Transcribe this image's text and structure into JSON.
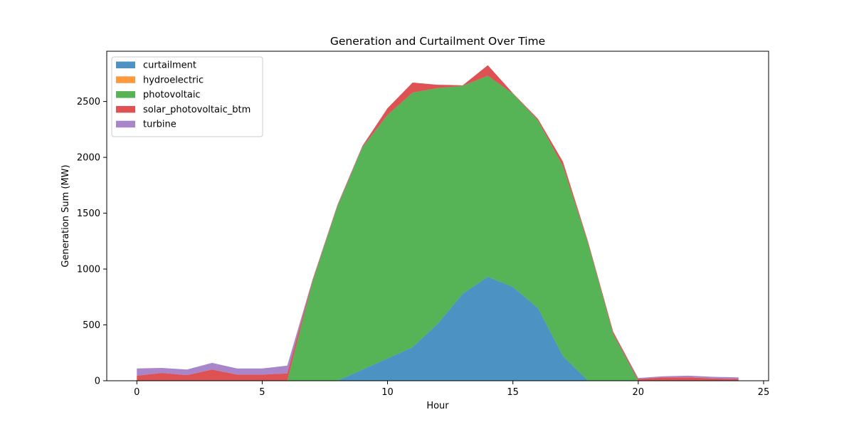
{
  "chart_data": {
    "type": "area",
    "stacked": true,
    "title": "Generation and Curtailment Over Time",
    "xlabel": "Hour",
    "ylabel": "Generation Sum (MW)",
    "xlim": [
      -1.2,
      25.2
    ],
    "ylim": [
      0,
      2950
    ],
    "xticks": [
      0,
      5,
      10,
      15,
      20,
      25
    ],
    "yticks": [
      0,
      500,
      1000,
      1500,
      2000,
      2500
    ],
    "legend_position": "top-left",
    "grid": false,
    "x": [
      0,
      1,
      2,
      3,
      4,
      5,
      6,
      7,
      8,
      9,
      10,
      11,
      12,
      13,
      14,
      15,
      16,
      17,
      18,
      19,
      20,
      21,
      22,
      23,
      24
    ],
    "series": [
      {
        "name": "curtailment",
        "color": "#1f77b4",
        "values": [
          0,
          0,
          0,
          0,
          0,
          0,
          0,
          0,
          0,
          100,
          200,
          300,
          510,
          780,
          930,
          840,
          650,
          220,
          0,
          0,
          0,
          0,
          0,
          0,
          0
        ]
      },
      {
        "name": "hydroelectric",
        "color": "#ff7f0e",
        "values": [
          0,
          0,
          0,
          0,
          0,
          0,
          0,
          0,
          0,
          0,
          0,
          0,
          0,
          0,
          0,
          0,
          0,
          0,
          0,
          0,
          0,
          0,
          0,
          0,
          0
        ]
      },
      {
        "name": "photovoltaic",
        "color": "#2ca02c",
        "values": [
          0,
          0,
          0,
          0,
          0,
          0,
          0,
          880,
          1560,
          1990,
          2180,
          2280,
          2110,
          1860,
          1800,
          1730,
          1680,
          1700,
          1230,
          420,
          0,
          0,
          0,
          0,
          0
        ]
      },
      {
        "name": "solar_photovoltaic_btm",
        "color": "#d62728",
        "values": [
          45,
          70,
          50,
          100,
          55,
          55,
          65,
          15,
          10,
          10,
          60,
          90,
          30,
          5,
          95,
          5,
          15,
          40,
          15,
          20,
          15,
          30,
          30,
          20,
          15
        ]
      },
      {
        "name": "turbine",
        "color": "#9467bd",
        "values": [
          65,
          45,
          50,
          60,
          55,
          55,
          70,
          5,
          5,
          5,
          0,
          0,
          0,
          0,
          0,
          0,
          0,
          0,
          0,
          0,
          10,
          10,
          15,
          15,
          15
        ]
      }
    ]
  }
}
